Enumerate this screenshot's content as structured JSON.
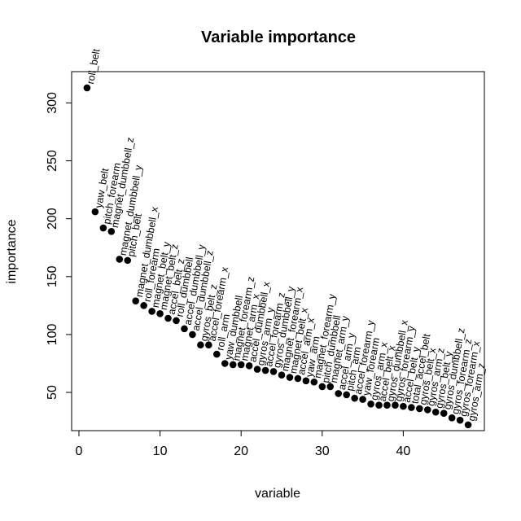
{
  "chart_data": {
    "type": "scatter",
    "title": "Variable importance",
    "xlabel": "variable",
    "ylabel": "importance",
    "xlim": [
      -0.9,
      50
    ],
    "ylim": [
      17,
      327
    ],
    "xticks": [
      0,
      10,
      20,
      30,
      40
    ],
    "yticks": [
      50,
      100,
      150,
      200,
      250,
      300
    ],
    "grid": false,
    "legend": "none",
    "points": [
      {
        "x": 1,
        "y": 313,
        "label": "roll_belt"
      },
      {
        "x": 2,
        "y": 206,
        "label": "yaw_belt"
      },
      {
        "x": 3,
        "y": 192,
        "label": "pitch_forearm"
      },
      {
        "x": 4,
        "y": 189,
        "label": "magnet_dumbbell_z"
      },
      {
        "x": 5,
        "y": 165,
        "label": "magnet_dumbbell_y"
      },
      {
        "x": 6,
        "y": 164,
        "label": "pitch_belt"
      },
      {
        "x": 7,
        "y": 129,
        "label": "magnet_dumbbell_x"
      },
      {
        "x": 8,
        "y": 125,
        "label": "roll_forearm"
      },
      {
        "x": 9,
        "y": 120,
        "label": "magnet_belt_y"
      },
      {
        "x": 10,
        "y": 118,
        "label": "magnet_belt_z"
      },
      {
        "x": 11,
        "y": 114,
        "label": "accel_belt_z"
      },
      {
        "x": 12,
        "y": 112,
        "label": "roll_dumbbell"
      },
      {
        "x": 13,
        "y": 105,
        "label": "accel_dumbbell_y"
      },
      {
        "x": 14,
        "y": 100,
        "label": "accel_dumbbell_z"
      },
      {
        "x": 15,
        "y": 91,
        "label": "gyros_belt_z"
      },
      {
        "x": 16,
        "y": 91,
        "label": "accel_forearm_x"
      },
      {
        "x": 17,
        "y": 83,
        "label": "roll_arm"
      },
      {
        "x": 18,
        "y": 75,
        "label": "yaw_dumbbell"
      },
      {
        "x": 19,
        "y": 74,
        "label": "magnet_forearm_z"
      },
      {
        "x": 20,
        "y": 74,
        "label": "magnet_arm_x"
      },
      {
        "x": 21,
        "y": 73,
        "label": "accel_dumbbell_x"
      },
      {
        "x": 22,
        "y": 70,
        "label": "gyros_arm_y"
      },
      {
        "x": 23,
        "y": 69,
        "label": "accel_forearm_z"
      },
      {
        "x": 24,
        "y": 68,
        "label": "gyros_dumbbell_y"
      },
      {
        "x": 25,
        "y": 65,
        "label": "magnet_forearm_x"
      },
      {
        "x": 26,
        "y": 63,
        "label": "magnet_belt_x"
      },
      {
        "x": 27,
        "y": 62,
        "label": "accel_arm_x"
      },
      {
        "x": 28,
        "y": 60,
        "label": "yaw_arm"
      },
      {
        "x": 29,
        "y": 59,
        "label": "magnet_forearm_y"
      },
      {
        "x": 30,
        "y": 55,
        "label": "pitch_dumbbell"
      },
      {
        "x": 31,
        "y": 55,
        "label": "magnet_arm_y"
      },
      {
        "x": 32,
        "y": 49,
        "label": "accel_arm_y"
      },
      {
        "x": 33,
        "y": 48,
        "label": "pitch_arm"
      },
      {
        "x": 34,
        "y": 45,
        "label": "accel_forearm_y"
      },
      {
        "x": 35,
        "y": 44,
        "label": "yaw_forearm"
      },
      {
        "x": 36,
        "y": 40,
        "label": "gyros_arm_x"
      },
      {
        "x": 37,
        "y": 39,
        "label": "accel_belt_x"
      },
      {
        "x": 38,
        "y": 39,
        "label": "gyros_dumbbell_x"
      },
      {
        "x": 39,
        "y": 39,
        "label": "gyros_forearm_y"
      },
      {
        "x": 40,
        "y": 38,
        "label": "accel_belt_y"
      },
      {
        "x": 41,
        "y": 37,
        "label": "total_accel_belt"
      },
      {
        "x": 42,
        "y": 36,
        "label": "gyros_belt_x"
      },
      {
        "x": 43,
        "y": 35,
        "label": "gyros_arm_z"
      },
      {
        "x": 44,
        "y": 33,
        "label": "gyros_belt_y"
      },
      {
        "x": 45,
        "y": 32,
        "label": "gyros_dumbbell_z"
      },
      {
        "x": 46,
        "y": 28,
        "label": "gyros_forearm_z"
      },
      {
        "x": 47,
        "y": 26,
        "label": "gyros_forearm_x"
      },
      {
        "x": 48,
        "y": 22,
        "label": "gyros_arm_z"
      }
    ]
  }
}
